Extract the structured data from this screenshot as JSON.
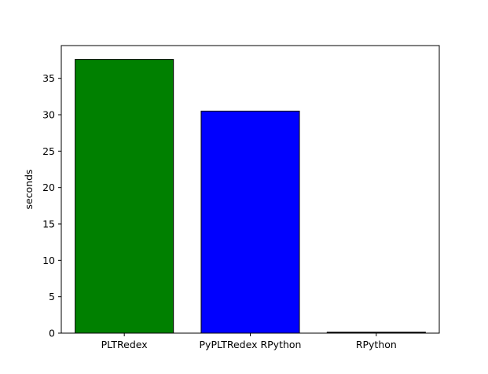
{
  "chart_data": {
    "type": "bar",
    "title": "",
    "xlabel": "",
    "ylabel": "seconds",
    "categories": [
      "PLTRedex",
      "PyPLTRedex RPython",
      "RPython"
    ],
    "values": [
      37.6,
      30.5,
      0.1
    ],
    "colors": [
      "#008000",
      "#0000ff",
      "#000000"
    ],
    "edge_color": "#000000",
    "ylim": [
      0,
      39.5
    ],
    "yticks": [
      0,
      5,
      10,
      15,
      20,
      25,
      30,
      35
    ],
    "grid": false,
    "legend": "none"
  }
}
